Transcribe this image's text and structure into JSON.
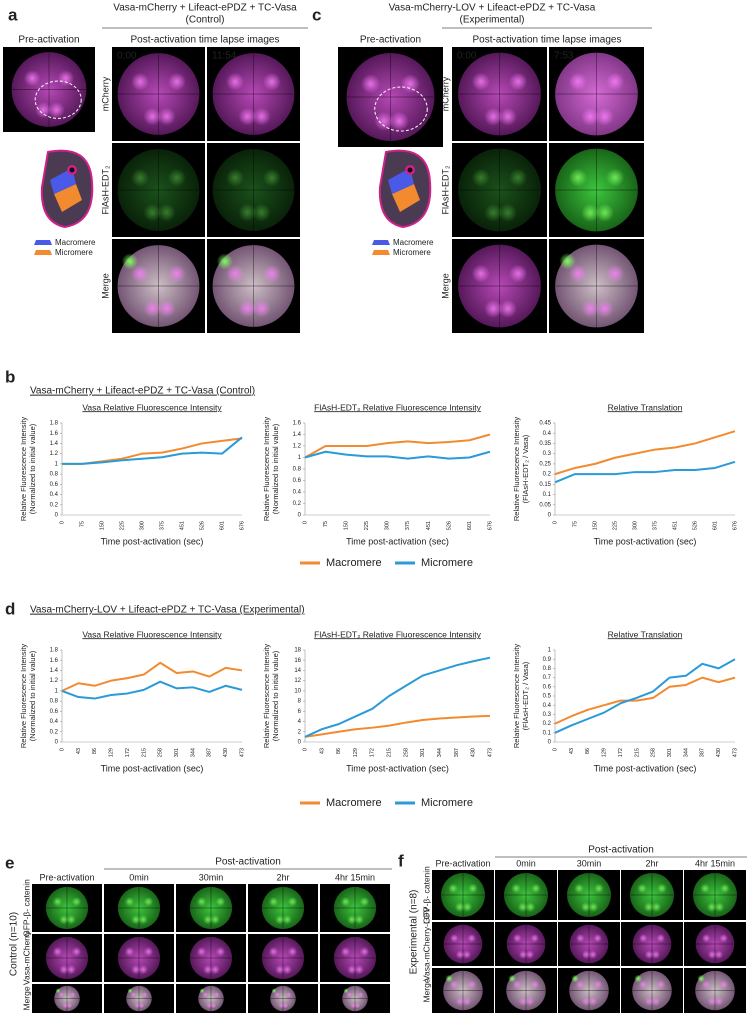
{
  "panels": {
    "a": {
      "letter": "a",
      "title": "Vasa-mCherry  + Lifeact-ePDZ + TC-Vasa",
      "subtitle": "(Control)",
      "pre_label": "Pre-activation",
      "post_label": "Post-activation time lapse images",
      "times": [
        "0:00",
        "11:54"
      ],
      "rows": [
        "mCherry",
        "FlAsH-EDT₂",
        "Merge"
      ],
      "legend": [
        "Macromere",
        "Micromere"
      ]
    },
    "c": {
      "letter": "c",
      "title": "Vasa-mCherry-LOV  + Lifeact-ePDZ + TC-Vasa",
      "subtitle": "(Experimental)",
      "pre_label": "Pre-activation",
      "post_label": "Post-activation time lapse images",
      "times": [
        "0:00",
        "7:53"
      ],
      "rows": [
        "mCherry",
        "FlAsH-EDT₂",
        "Merge"
      ],
      "legend": [
        "Macromere",
        "Micromere"
      ]
    },
    "b": {
      "letter": "b",
      "title": "Vasa-mCherry  + Lifeact-ePDZ + TC-Vasa   (Control)"
    },
    "d": {
      "letter": "d",
      "title": "Vasa-mCherry-LOV  + Lifeact-ePDZ + TC-Vasa  (Experimental)"
    },
    "e": {
      "letter": "e",
      "group": "Control  (n=10)",
      "post_label": "Post-activation",
      "columns": [
        "Pre-activation",
        "0min",
        "30min",
        "2hr",
        "4hr 15min"
      ],
      "rows": [
        "GFP-β- catenin",
        "Vasa-mCherry",
        "Merge"
      ]
    },
    "f": {
      "letter": "f",
      "group": "Experimental (n=8)",
      "post_label": "Post-activation",
      "columns": [
        "Pre-activation",
        "0min",
        "30min",
        "2hr",
        "4hr 15min"
      ],
      "rows": [
        "GFP-β- catenin",
        "Vasa-mCherry-LOV",
        "Merge"
      ]
    }
  },
  "chart_data": [
    {
      "type": "line",
      "title": "Vasa Relative Fluorescence Intensity",
      "ylabel": [
        "Relative Fluorescence Intensity",
        "(Normalized to initial value)"
      ],
      "xlabel": "Time post-activation (sec)",
      "categories": [
        "0",
        "75",
        "150",
        "225",
        "300",
        "375",
        "451",
        "526",
        "601",
        "676"
      ],
      "ylim": [
        0,
        1.8
      ],
      "yticks": [
        0,
        0.2,
        0.4,
        0.6,
        0.8,
        1,
        1.2,
        1.4,
        1.6,
        1.8
      ],
      "series": [
        {
          "name": "Macromere",
          "color": "#f28a30",
          "values": [
            1.0,
            1.0,
            1.05,
            1.1,
            1.2,
            1.22,
            1.3,
            1.4,
            1.45,
            1.5
          ]
        },
        {
          "name": "Micromere",
          "color": "#2a9ad8",
          "values": [
            1.0,
            1.0,
            1.03,
            1.07,
            1.1,
            1.13,
            1.2,
            1.22,
            1.2,
            1.52
          ]
        }
      ]
    },
    {
      "type": "line",
      "title": "FlAsH-EDT₂ Relative Fluorescence Intensity",
      "ylabel": [
        "Relative Fluorescence Intensity",
        "(Normalized to initial value)"
      ],
      "xlabel": "Time post-activation (sec)",
      "categories": [
        "0",
        "75",
        "150",
        "225",
        "300",
        "375",
        "451",
        "526",
        "601",
        "676"
      ],
      "ylim": [
        0,
        1.6
      ],
      "yticks": [
        0,
        0.2,
        0.4,
        0.6,
        0.8,
        1,
        1.2,
        1.4,
        1.6
      ],
      "series": [
        {
          "name": "Macromere",
          "color": "#f28a30",
          "values": [
            1.0,
            1.2,
            1.2,
            1.2,
            1.25,
            1.28,
            1.25,
            1.27,
            1.3,
            1.4
          ]
        },
        {
          "name": "Micromere",
          "color": "#2a9ad8",
          "values": [
            1.0,
            1.1,
            1.05,
            1.02,
            1.02,
            0.98,
            1.02,
            0.98,
            1.0,
            1.1
          ]
        }
      ]
    },
    {
      "type": "line",
      "title": "Relative Translation",
      "ylabel": [
        "Relative Fluorescence Intensity",
        "(FlAsH-EDT₂ / Vasa)"
      ],
      "xlabel": "Time post-activation (sec)",
      "categories": [
        "0",
        "75",
        "150",
        "225",
        "300",
        "375",
        "451",
        "526",
        "601",
        "676"
      ],
      "ylim": [
        0,
        0.45
      ],
      "yticks": [
        0,
        0.05,
        0.1,
        0.15,
        0.2,
        0.25,
        0.3,
        0.35,
        0.4,
        0.45
      ],
      "series": [
        {
          "name": "Macromere",
          "color": "#f28a30",
          "values": [
            0.2,
            0.23,
            0.25,
            0.28,
            0.3,
            0.32,
            0.33,
            0.35,
            0.38,
            0.41
          ]
        },
        {
          "name": "Micromere",
          "color": "#2a9ad8",
          "values": [
            0.16,
            0.2,
            0.2,
            0.2,
            0.21,
            0.21,
            0.22,
            0.22,
            0.23,
            0.26
          ]
        }
      ]
    },
    {
      "type": "line",
      "title": "Vasa Relative Fluorescence Intensity",
      "ylabel": [
        "Relative Fluorescence Intensity",
        "(Normalized to initial value)"
      ],
      "xlabel": "Time post-activation (sec)",
      "categories": [
        "0",
        "43",
        "86",
        "129",
        "172",
        "215",
        "258",
        "301",
        "344",
        "387",
        "430",
        "473"
      ],
      "ylim": [
        0,
        1.8
      ],
      "yticks": [
        0,
        0.2,
        0.4,
        0.6,
        0.8,
        1,
        1.2,
        1.4,
        1.6,
        1.8
      ],
      "series": [
        {
          "name": "Macromere",
          "color": "#f28a30",
          "values": [
            1.0,
            1.15,
            1.1,
            1.2,
            1.25,
            1.32,
            1.55,
            1.35,
            1.38,
            1.28,
            1.45,
            1.4
          ]
        },
        {
          "name": "Micromere",
          "color": "#2a9ad8",
          "values": [
            1.0,
            0.88,
            0.85,
            0.92,
            0.95,
            1.02,
            1.18,
            1.05,
            1.07,
            0.98,
            1.1,
            1.02
          ]
        }
      ]
    },
    {
      "type": "line",
      "title": "FlAsH-EDT₂ Relative Fluorescence Intensity",
      "ylabel": [
        "Relative Fluorescence Intensity",
        "(Normalized to initial value)"
      ],
      "xlabel": "Time post-activation (sec)",
      "categories": [
        "0",
        "43",
        "86",
        "129",
        "172",
        "215",
        "258",
        "301",
        "344",
        "387",
        "430",
        "473"
      ],
      "ylim": [
        0,
        18
      ],
      "yticks": [
        0,
        2,
        4,
        6,
        8,
        10,
        12,
        14,
        16,
        18
      ],
      "series": [
        {
          "name": "Macromere",
          "color": "#f28a30",
          "values": [
            1,
            1.5,
            2,
            2.5,
            2.8,
            3.2,
            3.8,
            4.3,
            4.6,
            4.8,
            5,
            5.1
          ]
        },
        {
          "name": "Micromere",
          "color": "#2a9ad8",
          "values": [
            1,
            2.5,
            3.5,
            5,
            6.5,
            9,
            11,
            13,
            14,
            15,
            15.8,
            16.5
          ]
        }
      ]
    },
    {
      "type": "line",
      "title": "Relative Translation",
      "ylabel": [
        "Relative Fluorescence Intensity",
        "(FlAsH-EDT₂ / Vasa)"
      ],
      "xlabel": "Time post-activation (sec)",
      "categories": [
        "0",
        "43",
        "86",
        "129",
        "172",
        "215",
        "258",
        "301",
        "344",
        "387",
        "430",
        "473"
      ],
      "ylim": [
        0,
        1
      ],
      "yticks": [
        0,
        0.1,
        0.2,
        0.3,
        0.4,
        0.5,
        0.6,
        0.7,
        0.8,
        0.9,
        1
      ],
      "series": [
        {
          "name": "Macromere",
          "color": "#f28a30",
          "values": [
            0.2,
            0.28,
            0.35,
            0.4,
            0.45,
            0.45,
            0.48,
            0.6,
            0.62,
            0.7,
            0.65,
            0.7
          ]
        },
        {
          "name": "Micromere",
          "color": "#2a9ad8",
          "values": [
            0.1,
            0.18,
            0.25,
            0.32,
            0.42,
            0.48,
            0.55,
            0.7,
            0.72,
            0.85,
            0.8,
            0.9
          ]
        }
      ]
    }
  ]
}
